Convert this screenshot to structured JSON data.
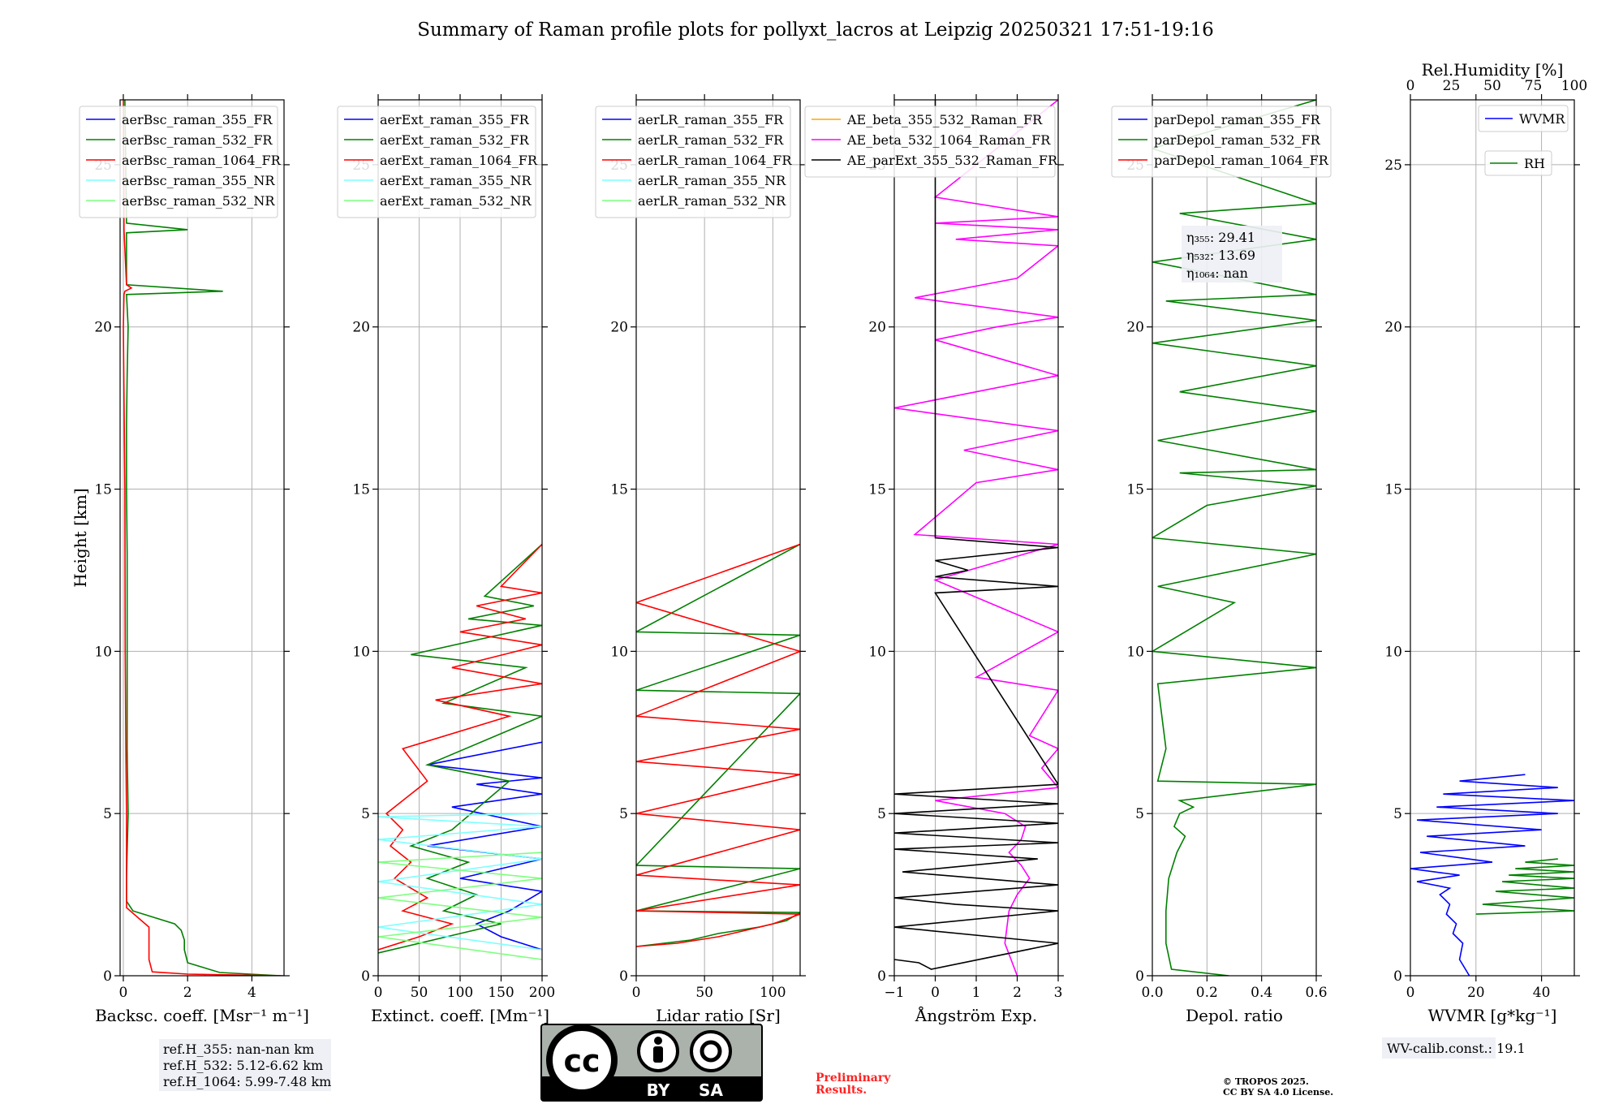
{
  "title": "Summary of Raman profile plots for pollyxt_lacros at Leipzig 20250321 17:51-19:16",
  "colors": {
    "blue": "#0000ff",
    "green": "#008000",
    "red": "#ff0000",
    "cyan": "#7fffff",
    "lightgreen": "#7fff7f",
    "orange": "#ffa500",
    "magenta": "#ff00ff",
    "black": "#000000",
    "grid": "#b0b0b0"
  },
  "chart_data": [
    {
      "id": "backscatter",
      "type": "line",
      "xlabel": "Backsc. coeff. [Msr⁻¹ m⁻¹]",
      "ylabel": "Height [km]",
      "xlim": [
        -0.1,
        5
      ],
      "ylim": [
        0,
        27
      ],
      "xticks": [
        0,
        2,
        4
      ],
      "yticks": [
        0,
        5,
        10,
        15,
        20,
        25
      ],
      "grid": true,
      "legend_position": "top-left",
      "legend": [
        {
          "name": "aerBsc_raman_355_FR",
          "color": "blue"
        },
        {
          "name": "aerBsc_raman_532_FR",
          "color": "green"
        },
        {
          "name": "aerBsc_raman_1064_FR",
          "color": "red"
        },
        {
          "name": "aerBsc_raman_355_NR",
          "color": "cyan"
        },
        {
          "name": "aerBsc_raman_532_NR",
          "color": "lightgreen"
        }
      ],
      "series": [
        {
          "name": "aerBsc_raman_532_FR",
          "color": "green",
          "x": [
            4.9,
            3.0,
            2.0,
            1.9,
            1.9,
            1.8,
            1.6,
            0.3,
            0.1,
            0.1,
            0.15,
            0.12,
            0.12,
            0.12,
            0.12,
            0.1,
            0.1,
            0.12,
            0.15,
            0.1,
            3.1,
            0.1,
            0.1,
            2.0,
            0.1,
            0.05
          ],
          "y": [
            0.0,
            0.1,
            0.4,
            0.8,
            1.1,
            1.4,
            1.6,
            2.0,
            2.3,
            3.0,
            5.0,
            7.0,
            9.0,
            11.0,
            13.0,
            15.0,
            17.0,
            18.5,
            20.0,
            21.0,
            21.1,
            21.3,
            22.9,
            23.0,
            23.2,
            27.0
          ]
        },
        {
          "name": "aerBsc_raman_1064_FR",
          "color": "red",
          "x": [
            5.0,
            2.0,
            0.9,
            0.8,
            0.8,
            0.8,
            0.1,
            0.1,
            0.1,
            0.08,
            0.06,
            0.05,
            0.0,
            0.02,
            0.05,
            0.25,
            0.1,
            0.02,
            0.0
          ],
          "y": [
            0.0,
            0.05,
            0.12,
            0.5,
            1.0,
            1.5,
            2.1,
            3.0,
            5.0,
            7.0,
            10.0,
            15.0,
            20.0,
            21.0,
            21.1,
            21.2,
            21.3,
            23.0,
            27.0
          ]
        }
      ]
    },
    {
      "id": "extinction",
      "type": "line",
      "xlabel": "Extinct. coeff. [Mm⁻¹]",
      "xlim": [
        0,
        200
      ],
      "ylim": [
        0,
        27
      ],
      "xticks": [
        0,
        50,
        100,
        150,
        200
      ],
      "yticks": [
        0,
        5,
        10,
        15,
        20,
        25
      ],
      "grid": true,
      "legend_position": "top-left",
      "legend": [
        {
          "name": "aerExt_raman_355_FR",
          "color": "blue"
        },
        {
          "name": "aerExt_raman_532_FR",
          "color": "green"
        },
        {
          "name": "aerExt_raman_1064_FR",
          "color": "red"
        },
        {
          "name": "aerExt_raman_355_NR",
          "color": "cyan"
        },
        {
          "name": "aerExt_raman_532_NR",
          "color": "lightgreen"
        }
      ],
      "series": [
        {
          "name": "aerExt_raman_355_FR",
          "color": "blue",
          "x": [
            200,
            150,
            120,
            160,
            200,
            100,
            200,
            60,
            200,
            90,
            200,
            120,
            200,
            60,
            200
          ],
          "y": [
            0.8,
            1.2,
            1.6,
            2.0,
            2.6,
            3.0,
            3.6,
            4.0,
            4.6,
            5.2,
            5.6,
            5.9,
            6.1,
            6.5,
            7.2
          ]
        },
        {
          "name": "aerExt_raman_532_FR",
          "color": "green",
          "x": [
            0,
            100,
            150,
            80,
            120,
            60,
            110,
            40,
            90,
            160,
            60,
            200,
            80,
            180,
            40,
            200,
            110,
            190,
            130,
            200
          ],
          "y": [
            0.7,
            1.3,
            1.6,
            2.0,
            2.5,
            3.0,
            3.5,
            4.0,
            4.5,
            6.0,
            6.5,
            8.0,
            8.4,
            9.5,
            9.9,
            10.8,
            11.0,
            11.4,
            11.7,
            13.3
          ]
        },
        {
          "name": "aerExt_raman_1064_FR",
          "color": "red",
          "x": [
            0,
            50,
            90,
            30,
            60,
            20,
            40,
            15,
            30,
            10,
            60,
            30,
            160,
            70,
            200,
            90,
            200,
            100,
            180,
            120,
            200,
            150,
            200
          ],
          "y": [
            0.8,
            1.2,
            1.6,
            2.0,
            2.4,
            3.0,
            3.5,
            4.0,
            4.5,
            5.0,
            6.0,
            7.0,
            8.0,
            8.5,
            9.0,
            9.5,
            10.2,
            10.6,
            11.0,
            11.4,
            11.8,
            12.0,
            13.3
          ]
        },
        {
          "name": "aerExt_raman_355_NR",
          "color": "cyan",
          "x": [
            200,
            0,
            200,
            0,
            200,
            0,
            200,
            0,
            200
          ],
          "y": [
            0.8,
            1.5,
            2.2,
            2.9,
            3.6,
            4.2,
            4.6,
            4.9,
            5.0
          ]
        },
        {
          "name": "aerExt_raman_532_NR",
          "color": "lightgreen",
          "x": [
            200,
            0,
            200,
            0,
            200,
            0,
            200
          ],
          "y": [
            0.5,
            1.2,
            1.8,
            2.4,
            3.0,
            3.5,
            3.8
          ]
        }
      ]
    },
    {
      "id": "lidar_ratio",
      "type": "line",
      "xlabel": "Lidar ratio [Sr]",
      "xlim": [
        0,
        120
      ],
      "ylim": [
        0,
        27
      ],
      "xticks": [
        0,
        50,
        100
      ],
      "yticks": [
        0,
        5,
        10,
        15,
        20,
        25
      ],
      "grid": true,
      "legend_position": "top-left",
      "legend": [
        {
          "name": "aerLR_raman_355_FR",
          "color": "blue"
        },
        {
          "name": "aerLR_raman_532_FR",
          "color": "green"
        },
        {
          "name": "aerLR_raman_1064_FR",
          "color": "red"
        },
        {
          "name": "aerLR_raman_355_NR",
          "color": "cyan"
        },
        {
          "name": "aerLR_raman_532_NR",
          "color": "lightgreen"
        }
      ],
      "series": [
        {
          "name": "aerLR_raman_532_FR",
          "color": "green",
          "x": [
            0,
            40,
            60,
            90,
            110,
            120,
            0,
            120,
            0,
            120,
            0,
            120,
            0,
            120
          ],
          "y": [
            0.9,
            1.1,
            1.3,
            1.5,
            1.7,
            1.95,
            2.0,
            3.3,
            3.4,
            8.7,
            8.8,
            10.5,
            10.6,
            13.3
          ]
        },
        {
          "name": "aerLR_raman_1064_FR",
          "color": "red",
          "x": [
            0,
            30,
            60,
            80,
            100,
            120,
            0,
            120,
            0,
            120,
            0,
            120,
            0,
            120,
            0,
            120,
            0,
            120
          ],
          "y": [
            0.9,
            1.0,
            1.2,
            1.4,
            1.6,
            1.9,
            2.0,
            2.8,
            3.1,
            4.5,
            5.0,
            6.2,
            6.6,
            7.6,
            8.0,
            10.0,
            11.5,
            13.3
          ]
        }
      ]
    },
    {
      "id": "angstrom",
      "type": "line",
      "xlabel": "Ångström Exp.",
      "xlim": [
        -1,
        3
      ],
      "ylim": [
        0,
        27
      ],
      "xticks": [
        -1,
        0,
        1,
        2,
        3
      ],
      "xticklabels": [
        "−1",
        "0",
        "1",
        "2",
        "3"
      ],
      "yticks": [
        0,
        5,
        10,
        15,
        20,
        25
      ],
      "grid": true,
      "legend_position": "top-left",
      "legend": [
        {
          "name": "AE_beta_355_532_Raman_FR",
          "color": "orange"
        },
        {
          "name": "AE_beta_532_1064_Raman_FR",
          "color": "magenta"
        },
        {
          "name": "AE_parExt_355_532_Raman_FR",
          "color": "black"
        }
      ],
      "series": [
        {
          "name": "AE_beta_532_1064_Raman_FR",
          "color": "magenta",
          "x": [
            2.0,
            1.7,
            1.8,
            2.0,
            2.3,
            2.1,
            1.8,
            2.1,
            2.2,
            1.7,
            0.0,
            3.0,
            2.6,
            3.0,
            2.3,
            3.0,
            1.0,
            3.0,
            0.0,
            3.0,
            -0.5,
            1.0,
            3.0,
            0.7,
            3.0,
            -1.0,
            3.0,
            0.0,
            1.5,
            3.0,
            -0.5,
            2.0,
            3.0,
            0.5,
            3.0,
            0.0,
            3.0,
            0.0,
            3.0
          ],
          "y": [
            0.0,
            1.0,
            2.0,
            2.5,
            3.0,
            3.4,
            3.8,
            4.2,
            4.6,
            5.0,
            5.4,
            5.8,
            6.4,
            7.0,
            7.4,
            8.8,
            9.2,
            10.6,
            12.2,
            13.3,
            13.6,
            15.2,
            15.6,
            16.2,
            16.8,
            17.5,
            18.5,
            19.6,
            20.0,
            20.3,
            20.9,
            21.5,
            22.5,
            22.7,
            23.0,
            23.2,
            23.4,
            24.0,
            27.0
          ]
        },
        {
          "name": "AE_parExt_355_532_Raman_FR",
          "color": "black",
          "x": [
            -1.0,
            -0.4,
            -0.1,
            3.0,
            -1.0,
            3.0,
            0.5,
            -1.0,
            3.0,
            -0.8,
            2.5,
            -1.0,
            3.0,
            -1.0,
            3.0,
            -1.0,
            3.0,
            -1.0,
            3.0,
            0.0,
            3.0,
            0.0,
            0.8,
            0.0,
            3.0,
            0.0,
            0.0,
            0.0
          ],
          "y": [
            0.5,
            0.4,
            0.2,
            1.0,
            1.5,
            2.0,
            2.2,
            2.4,
            2.8,
            3.2,
            3.6,
            3.9,
            4.1,
            4.4,
            4.7,
            5.0,
            5.3,
            5.6,
            5.9,
            11.8,
            12.0,
            12.3,
            12.5,
            12.8,
            13.2,
            13.5,
            25.0,
            27.0
          ]
        }
      ]
    },
    {
      "id": "depol",
      "type": "line",
      "xlabel": "Depol. ratio",
      "xlim": [
        0,
        0.6
      ],
      "ylim": [
        0,
        27
      ],
      "xticks": [
        0,
        0.2,
        0.4,
        0.6
      ],
      "xticklabels": [
        "0.0",
        "0.2",
        "0.4",
        "0.6"
      ],
      "yticks": [
        0,
        5,
        10,
        15,
        20,
        25
      ],
      "grid": true,
      "legend_position": "top-left",
      "legend": [
        {
          "name": "parDepol_raman_355_FR",
          "color": "blue"
        },
        {
          "name": "parDepol_raman_532_FR",
          "color": "green"
        },
        {
          "name": "parDepol_raman_1064_FR",
          "color": "red"
        }
      ],
      "series": [
        {
          "name": "parDepol_raman_532_FR",
          "color": "green",
          "x": [
            0.28,
            0.07,
            0.05,
            0.05,
            0.06,
            0.09,
            0.12,
            0.08,
            0.09,
            0.1,
            0.15,
            0.1,
            0.6,
            0.02,
            0.05,
            0.02,
            0.6,
            0.0,
            0.3,
            0.02,
            0.6,
            0.0,
            0.2,
            0.6,
            0.1,
            0.6,
            0.02,
            0.6,
            0.1,
            0.6,
            0.0,
            0.6,
            0.05,
            0.6,
            0.0,
            0.6,
            0.1,
            0.6,
            0.0,
            0.6
          ],
          "y": [
            0.0,
            0.2,
            1.0,
            2.0,
            3.0,
            3.8,
            4.3,
            4.6,
            4.8,
            5.0,
            5.2,
            5.4,
            5.9,
            6.0,
            7.0,
            9.0,
            9.5,
            10.0,
            11.5,
            12.0,
            13.0,
            13.5,
            14.5,
            15.1,
            15.5,
            15.6,
            16.5,
            17.4,
            18.0,
            18.8,
            19.5,
            20.2,
            20.8,
            21.0,
            22.0,
            22.7,
            23.5,
            23.8,
            25.5,
            27.0
          ]
        }
      ],
      "annotation": [
        "η₃₅₅: 29.41",
        "η₅₃₂: 13.69",
        "η₁₀₆₄: nan"
      ]
    },
    {
      "id": "wvmr",
      "type": "line",
      "xlabel": "WVMR [g*kg⁻¹]",
      "xlim": [
        0,
        50
      ],
      "ylim": [
        0,
        27
      ],
      "xticks": [
        0,
        20,
        40
      ],
      "yticks": [
        0,
        5,
        10,
        15,
        20,
        25
      ],
      "grid": true,
      "top_axis_label": "Rel.Humidity [%]",
      "top_xlim": [
        0,
        100
      ],
      "top_xticks": [
        0,
        25,
        50,
        75,
        100
      ],
      "legend_position": "top-right",
      "legend": [
        {
          "name": "WVMR",
          "color": "blue"
        },
        {
          "name": "RH",
          "color": "green"
        }
      ],
      "series": [
        {
          "name": "WVMR",
          "color": "blue",
          "x": [
            18,
            15,
            16,
            13,
            14,
            11,
            12,
            9,
            12,
            2,
            15,
            0,
            25,
            3,
            35,
            5,
            40,
            2,
            45,
            8,
            50,
            10,
            45,
            15,
            35
          ],
          "y": [
            0.0,
            0.5,
            1.0,
            1.3,
            1.6,
            1.9,
            2.2,
            2.5,
            2.7,
            2.9,
            3.1,
            3.3,
            3.5,
            3.8,
            4.0,
            4.3,
            4.5,
            4.8,
            5.0,
            5.2,
            5.4,
            5.6,
            5.8,
            6.0,
            6.2
          ]
        },
        {
          "name": "RH",
          "color": "green",
          "x": [
            20,
            50,
            22,
            50,
            26,
            50,
            28,
            50,
            30,
            50,
            32,
            50,
            35,
            45
          ],
          "y": [
            1.9,
            2.0,
            2.2,
            2.4,
            2.6,
            2.7,
            2.9,
            3.0,
            3.1,
            3.2,
            3.3,
            3.4,
            3.5,
            3.6
          ]
        }
      ]
    }
  ],
  "annotations": {
    "ref_heights": [
      "ref.H_355: nan-nan km",
      "ref.H_532: 5.12-6.62 km",
      "ref.H_1064: 5.99-7.48 km"
    ],
    "wv_calib": "WV-calib.const.: 19.1",
    "preliminary": [
      "Preliminary",
      "Results."
    ],
    "copyright": [
      "© TROPOS 2025.",
      "CC BY SA 4.0 License."
    ],
    "cc_logo": {
      "cc": "cc",
      "by": "BY",
      "sa": "SA"
    }
  }
}
